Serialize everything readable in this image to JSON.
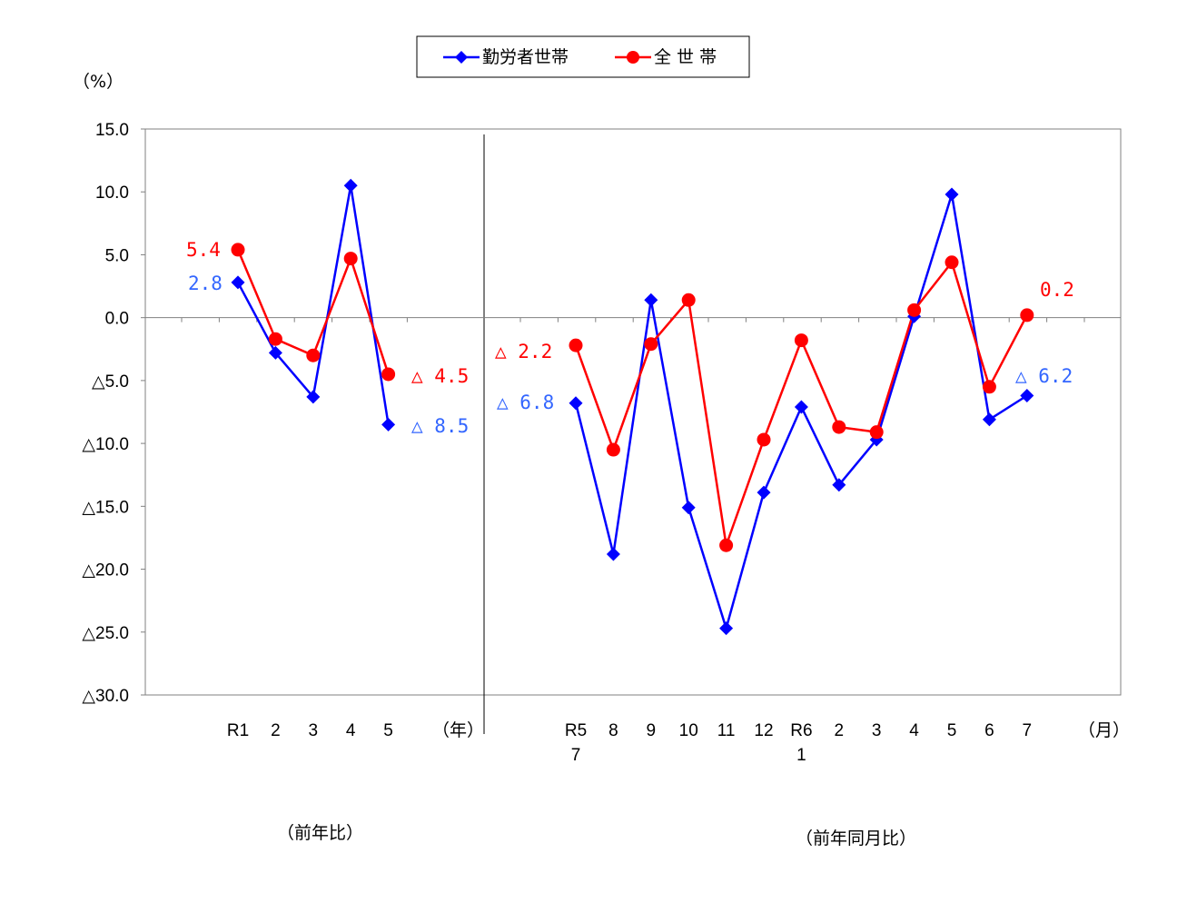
{
  "unit_label": "（%）",
  "legend": [
    {
      "label": "勤労者世帯",
      "color": "#0000FF",
      "marker": "diamond"
    },
    {
      "label": "全 世 帯",
      "color": "#FF0000",
      "marker": "circle"
    }
  ],
  "annual_axis_unit": "（年）",
  "monthly_axis_unit": "（月）",
  "annual_caption": "（前年比）",
  "monthly_caption": "（前年同月比）",
  "chart_data": {
    "type": "line",
    "ylim": [
      -30,
      15
    ],
    "yticks": [
      {
        "value": 15,
        "label": "15.0"
      },
      {
        "value": 10,
        "label": "10.0"
      },
      {
        "value": 5,
        "label": "5.0"
      },
      {
        "value": 0,
        "label": "0.0"
      },
      {
        "value": -5,
        "label": "△5.0"
      },
      {
        "value": -10,
        "label": "△10.0"
      },
      {
        "value": -15,
        "label": "△15.0"
      },
      {
        "value": -20,
        "label": "△20.0"
      },
      {
        "value": -25,
        "label": "△25.0"
      },
      {
        "value": -30,
        "label": "△30.0"
      }
    ],
    "panels": [
      {
        "id": "annual",
        "categories": [
          [
            "R1"
          ],
          [
            "2"
          ],
          [
            "3"
          ],
          [
            "4"
          ],
          [
            "5"
          ]
        ],
        "series": [
          {
            "name": "勤労者世帯",
            "color": "#0000FF",
            "marker": "diamond",
            "values": [
              2.8,
              -2.8,
              -6.3,
              10.5,
              -8.5
            ]
          },
          {
            "name": "全 世 帯",
            "color": "#FF0000",
            "marker": "circle",
            "values": [
              5.4,
              -1.7,
              -3.0,
              4.7,
              -4.5
            ]
          }
        ]
      },
      {
        "id": "monthly",
        "categories": [
          [
            "R5",
            "7"
          ],
          [
            "8"
          ],
          [
            "9"
          ],
          [
            "10"
          ],
          [
            "11"
          ],
          [
            "12"
          ],
          [
            "R6",
            "1"
          ],
          [
            "2"
          ],
          [
            "3"
          ],
          [
            "4"
          ],
          [
            "5"
          ],
          [
            "6"
          ],
          [
            "7"
          ]
        ],
        "series": [
          {
            "name": "勤労者世帯",
            "color": "#0000FF",
            "marker": "diamond",
            "values": [
              -6.8,
              -18.8,
              1.4,
              -15.1,
              -24.7,
              -13.9,
              -7.1,
              -13.3,
              -9.7,
              0.1,
              9.8,
              -8.1,
              -6.2
            ]
          },
          {
            "name": "全 世 帯",
            "color": "#FF0000",
            "marker": "circle",
            "values": [
              -2.2,
              -10.5,
              -2.1,
              1.4,
              -18.1,
              -9.7,
              -1.8,
              -8.7,
              -9.1,
              0.6,
              4.4,
              -5.5,
              0.2
            ]
          }
        ]
      }
    ],
    "annotations": [
      {
        "text": "5.4",
        "color": "#FF0000"
      },
      {
        "text": "2.8",
        "color": "#3366FF"
      },
      {
        "text": "△ 4.5",
        "color": "#FF0000"
      },
      {
        "text": "△ 8.5",
        "color": "#3366FF"
      },
      {
        "text": "△ 2.2",
        "color": "#FF0000"
      },
      {
        "text": "△ 6.8",
        "color": "#3366FF"
      },
      {
        "text": "0.2",
        "color": "#FF0000"
      },
      {
        "text": "△ 6.2",
        "color": "#3366FF"
      }
    ]
  }
}
